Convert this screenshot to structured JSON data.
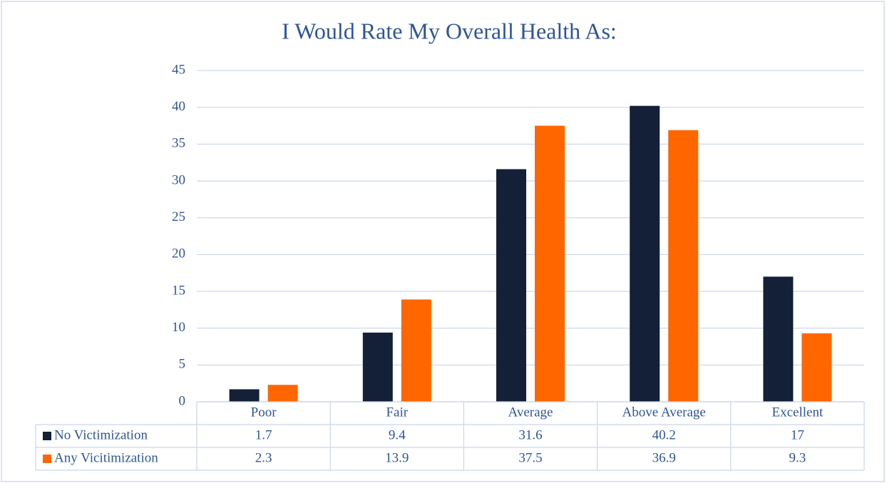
{
  "chart_data": {
    "type": "bar",
    "title": "I Would Rate My Overall Health As:",
    "categories": [
      "Poor",
      "Fair",
      "Average",
      "Above Average",
      "Excellent"
    ],
    "series": [
      {
        "name": "No Victimization",
        "color": "#141f38",
        "values": [
          1.7,
          9.4,
          31.6,
          40.2,
          17
        ]
      },
      {
        "name": "Any Vicitimization",
        "color": "#ff6600",
        "values": [
          2.3,
          13.9,
          37.5,
          36.9,
          9.3
        ]
      }
    ],
    "ylim": [
      0,
      45
    ],
    "yticks": [
      0,
      5,
      10,
      15,
      20,
      25,
      30,
      35,
      40,
      45
    ],
    "grid": true,
    "data_table": true
  }
}
